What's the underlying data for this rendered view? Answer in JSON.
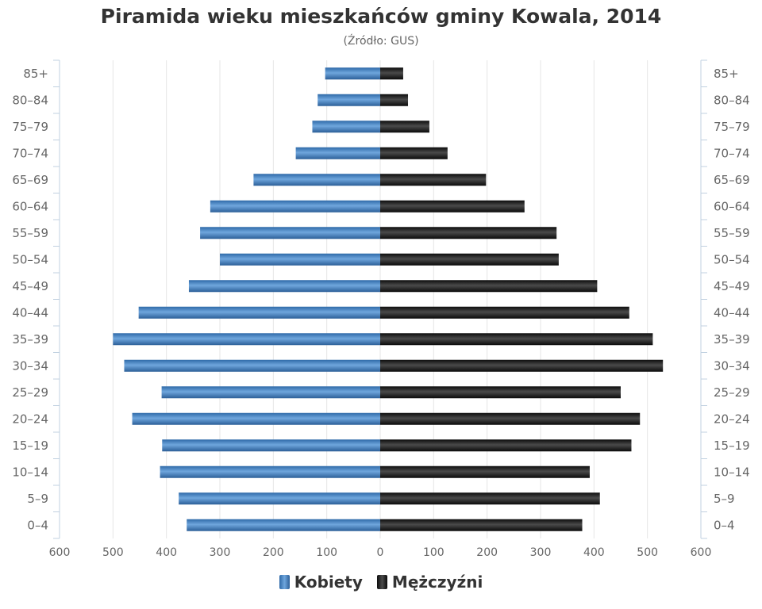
{
  "title": "Piramida wieku mieszkańców gminy Kowala, 2014",
  "subtitle": "(Źródło: GUS)",
  "colors": {
    "female": "#3f80c2",
    "male": "#1a1a1a",
    "grid": "#e6e6e6",
    "text": "#666666"
  },
  "chart_data": {
    "type": "bar",
    "orientation": "horizontal-pyramid",
    "categories": [
      "85+",
      "80–84",
      "75–79",
      "70–74",
      "65–69",
      "60–64",
      "55–59",
      "50–54",
      "45–49",
      "40–44",
      "35–39",
      "30–34",
      "25–29",
      "20–24",
      "15–19",
      "10–14",
      "5–9",
      "0–4"
    ],
    "series": [
      {
        "name": "Kobiety",
        "side": "left",
        "values": [
          103,
          117,
          127,
          158,
          237,
          318,
          337,
          300,
          358,
          452,
          500,
          479,
          409,
          464,
          408,
          412,
          377,
          362
        ]
      },
      {
        "name": "Mężczyźni",
        "side": "right",
        "values": [
          43,
          52,
          92,
          126,
          198,
          270,
          330,
          334,
          406,
          466,
          510,
          529,
          450,
          486,
          470,
          392,
          411,
          378
        ]
      }
    ],
    "xlim": [
      -600,
      600
    ],
    "x_ticks": [
      "600",
      "500",
      "400",
      "300",
      "200",
      "100",
      "0",
      "100",
      "200",
      "300",
      "400",
      "500",
      "600"
    ],
    "grid": true,
    "legend_position": "bottom"
  }
}
